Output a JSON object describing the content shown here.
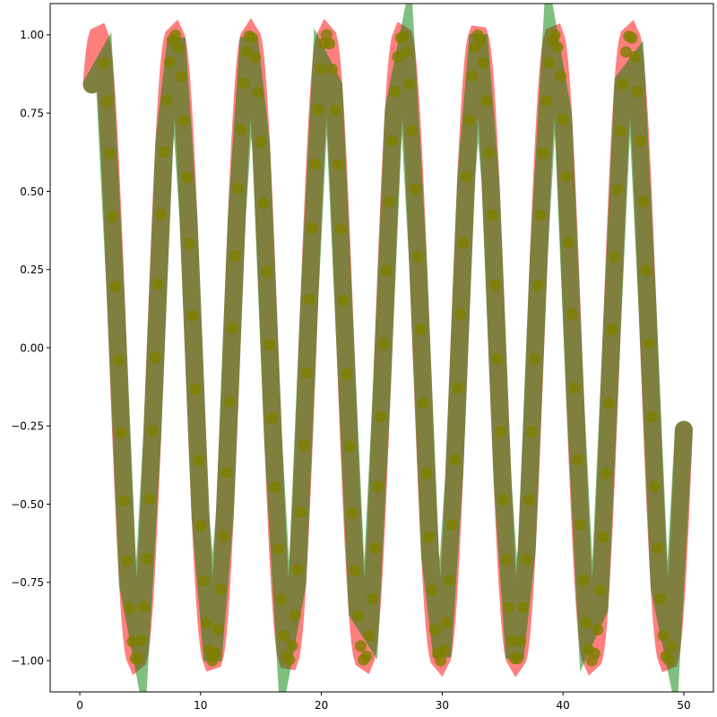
{
  "chart_data": {
    "type": "line",
    "title": "",
    "xlabel": "",
    "ylabel": "",
    "xlim": [
      -2.45,
      52.45
    ],
    "ylim": [
      -1.1,
      1.1
    ],
    "xticks": [
      0,
      10,
      20,
      30,
      40,
      50
    ],
    "yticks": [
      -1.0,
      -0.75,
      -0.5,
      -0.25,
      0.0,
      0.25,
      0.5,
      0.75,
      1.0
    ],
    "ytick_labels": [
      "−1.00",
      "−0.75",
      "−0.50",
      "−0.25",
      "0.00",
      "0.25",
      "0.50",
      "0.75",
      "1.00"
    ],
    "grid": false,
    "legend": "none",
    "series": [
      {
        "style": "thick-line",
        "color": "#ff0000",
        "alpha": 0.5,
        "x_start": 1,
        "x_end": 50,
        "n_points": 400,
        "formula": "sin(x)"
      },
      {
        "style": "thick-line",
        "color": "#008000",
        "alpha": 0.5,
        "x": [
          1,
          2,
          3,
          4,
          5,
          6,
          7,
          8,
          9,
          10,
          11,
          12,
          13,
          14,
          15,
          16,
          17,
          18,
          19,
          20,
          21,
          22,
          23,
          24,
          25,
          26,
          27,
          28,
          29,
          30,
          31,
          32,
          33,
          34,
          35,
          36,
          37,
          38,
          39,
          40,
          41,
          42,
          43,
          44,
          45,
          46,
          47,
          48,
          49,
          50
        ],
        "y": [
          0.841,
          0.909,
          0.141,
          -0.757,
          -0.959,
          -0.279,
          0.657,
          0.989,
          0.412,
          -0.544,
          -1.0,
          -0.537,
          0.42,
          0.991,
          0.65,
          -0.288,
          -0.961,
          -0.751,
          0.15,
          0.913,
          0.837,
          -0.009,
          -0.846,
          -0.906,
          -0.132,
          0.763,
          0.956,
          0.271,
          -0.664,
          -0.988,
          -0.404,
          0.551,
          1.0,
          0.529,
          -0.428,
          -0.992,
          -0.644,
          0.296,
          0.964,
          0.745,
          -0.159,
          -0.917,
          -0.832,
          0.018,
          0.851,
          0.902,
          0.124,
          -0.768,
          -0.954,
          -0.262
        ]
      },
      {
        "style": "markers",
        "color": "#808000",
        "alpha": 0.8,
        "x_start": 2,
        "x_end": 49,
        "n_points": 200,
        "formula": "sin(x)"
      }
    ]
  }
}
